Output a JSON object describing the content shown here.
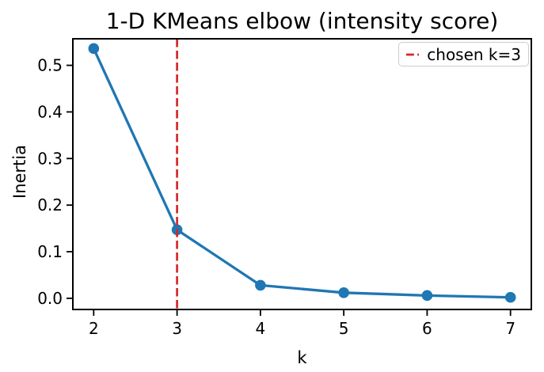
{
  "chart_data": {
    "type": "line",
    "title": "1-D KMeans elbow (intensity score)",
    "xlabel": "k",
    "ylabel": "Inertia",
    "x": [
      2,
      3,
      4,
      5,
      6,
      7
    ],
    "series": [
      {
        "name": "inertia",
        "values": [
          0.536,
          0.147,
          0.028,
          0.012,
          0.006,
          0.002
        ],
        "color": "#1f77b4",
        "marker": "circle"
      }
    ],
    "vline": {
      "x": 3,
      "color": "#d62728",
      "style": "dashed"
    },
    "legend": {
      "position": "upper right",
      "entries": [
        {
          "label": "chosen k=3",
          "color": "#d62728",
          "style": "dashed"
        }
      ]
    },
    "xticks": [
      2,
      3,
      4,
      5,
      6,
      7
    ],
    "xtick_labels": [
      "2",
      "3",
      "4",
      "5",
      "6",
      "7"
    ],
    "yticks": [
      0.0,
      0.1,
      0.2,
      0.3,
      0.4,
      0.5
    ],
    "ytick_labels": [
      "0.0",
      "0.1",
      "0.2",
      "0.3",
      "0.4",
      "0.5"
    ],
    "xlim": [
      1.75,
      7.25
    ],
    "ylim": [
      -0.024,
      0.557
    ],
    "grid": false
  },
  "colors": {
    "line": "#1f77b4",
    "vline": "#d62728",
    "axis": "#000000",
    "background": "#ffffff",
    "legend_border": "#cccccc"
  }
}
